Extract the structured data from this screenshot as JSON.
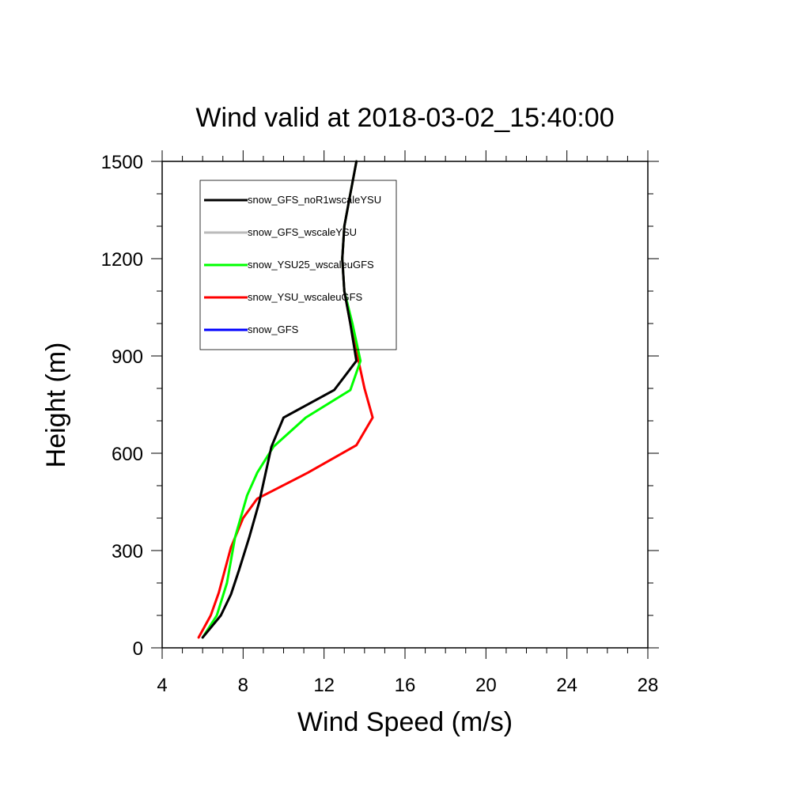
{
  "chart_data": {
    "type": "line",
    "title": "Wind valid at 2018-03-02_15:40:00",
    "xlabel": "Wind Speed (m/s)",
    "ylabel": "Height (m)",
    "xlim": [
      4,
      28
    ],
    "ylim": [
      0,
      1500
    ],
    "xticks": [
      "4",
      "8",
      "12",
      "16",
      "20",
      "24",
      "28"
    ],
    "yticks": [
      "0",
      "300",
      "600",
      "900",
      "1200",
      "1500"
    ],
    "legend_position": "top-left",
    "grid": false,
    "series": [
      {
        "name": "snow_GFS_noR1wscaleYSU",
        "color": "#000000",
        "x": [
          6.0,
          6.9,
          7.4,
          7.8,
          8.3,
          8.8,
          9.4,
          10.0,
          12.5,
          13.6,
          13.3,
          13.0,
          12.9,
          13.0,
          13.3,
          13.6
        ],
        "y": [
          32,
          100,
          165,
          240,
          340,
          450,
          620,
          710,
          795,
          885,
          1000,
          1100,
          1200,
          1300,
          1400,
          1500
        ]
      },
      {
        "name": "snow_GFS_wscaleYSU",
        "color": "#bbbbbb",
        "x": [
          6.0,
          6.9,
          7.4,
          7.8,
          8.3,
          8.8,
          9.4,
          10.0,
          12.5,
          13.6,
          13.3,
          13.0,
          12.9,
          13.0,
          13.3,
          13.6
        ],
        "y": [
          32,
          100,
          165,
          240,
          340,
          450,
          620,
          710,
          795,
          885,
          1000,
          1100,
          1200,
          1300,
          1400,
          1500
        ]
      },
      {
        "name": "snow_YSU25_wscaleuGFS",
        "color": "#00ff00",
        "x": [
          6.0,
          6.7,
          7.2,
          7.6,
          8.2,
          8.7,
          9.5,
          11.1,
          13.3,
          13.8,
          13.4,
          13.0,
          12.9,
          13.0,
          13.3,
          13.6
        ],
        "y": [
          32,
          100,
          200,
          340,
          470,
          540,
          620,
          710,
          795,
          885,
          1000,
          1100,
          1200,
          1300,
          1400,
          1500
        ]
      },
      {
        "name": "snow_YSU_wscaleuGFS",
        "color": "#ff0000",
        "x": [
          5.8,
          6.4,
          6.8,
          7.4,
          8.0,
          8.7,
          11.2,
          13.6,
          14.4,
          14.0,
          13.7,
          13.3,
          13.0,
          12.9,
          13.0,
          13.3,
          13.6
        ],
        "y": [
          32,
          100,
          170,
          310,
          400,
          460,
          540,
          625,
          710,
          800,
          885,
          1000,
          1100,
          1200,
          1300,
          1400,
          1500
        ]
      },
      {
        "name": "snow_GFS",
        "color": "#0000ff",
        "x": [],
        "y": []
      }
    ]
  }
}
